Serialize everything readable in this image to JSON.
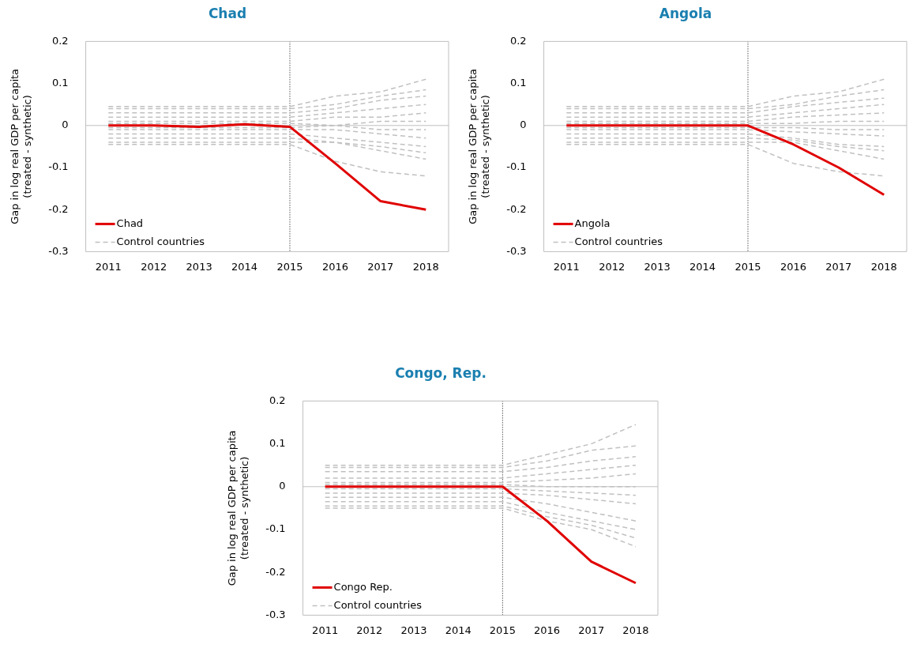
{
  "chart_data": [
    {
      "type": "line",
      "title": "Chad",
      "ylabel": "Gap in log real GDP per capita\n(treated - synthetic)",
      "categories": [
        "2011",
        "2012",
        "2013",
        "2014",
        "2015",
        "2016",
        "2017",
        "2018"
      ],
      "ylim": [
        -0.3,
        0.2
      ],
      "yticks": [
        0.2,
        0.1,
        0,
        -0.1,
        -0.2,
        -0.3
      ],
      "grid": false,
      "legend": "bottom left",
      "marker": "none",
      "ref_lines": [
        {
          "axis": "x",
          "value": "2015",
          "color": "#000000",
          "line_style": "dotted"
        },
        {
          "axis": "y",
          "value": 0,
          "color": "#bfbfbf",
          "line_style": "solid"
        }
      ],
      "series": [
        {
          "name": "Chad",
          "color": "#e00000",
          "line_style": "solid",
          "values": [
            0,
            0,
            -0.003,
            0.003,
            -0.003,
            -0.09,
            -0.18,
            -0.2
          ]
        },
        {
          "name": "Control countries",
          "color": "#c0c0c0",
          "line_style": "dashed",
          "values": [
            0.045,
            0.045,
            0.045,
            0.045,
            0.045,
            0.07,
            0.08,
            0.11
          ]
        },
        {
          "color": "#c0c0c0",
          "line_style": "dashed",
          "values": [
            0.04,
            0.04,
            0.04,
            0.04,
            0.04,
            0.05,
            0.07,
            0.085
          ]
        },
        {
          "color": "#c0c0c0",
          "line_style": "dashed",
          "values": [
            0.03,
            0.03,
            0.03,
            0.03,
            0.03,
            0.04,
            0.06,
            0.07
          ]
        },
        {
          "color": "#c0c0c0",
          "line_style": "dashed",
          "values": [
            0.02,
            0.02,
            0.02,
            0.02,
            0.02,
            0.03,
            0.04,
            0.05
          ]
        },
        {
          "color": "#c0c0c0",
          "line_style": "dashed",
          "values": [
            0.01,
            0.01,
            0.01,
            0.01,
            0.01,
            0.02,
            0.02,
            0.03
          ]
        },
        {
          "color": "#c0c0c0",
          "line_style": "dashed",
          "values": [
            0.005,
            0.005,
            0.005,
            0.005,
            0.005,
            0,
            0.01,
            0.01
          ]
        },
        {
          "color": "#c0c0c0",
          "line_style": "dashed",
          "values": [
            -0.005,
            -0.005,
            -0.005,
            -0.005,
            -0.005,
            0,
            -0.01,
            -0.01
          ]
        },
        {
          "color": "#c0c0c0",
          "line_style": "dashed",
          "values": [
            -0.01,
            -0.01,
            -0.01,
            -0.01,
            -0.01,
            -0.01,
            -0.02,
            -0.03
          ]
        },
        {
          "color": "#c0c0c0",
          "line_style": "dashed",
          "values": [
            -0.02,
            -0.02,
            -0.02,
            -0.02,
            -0.02,
            -0.03,
            -0.04,
            -0.05
          ]
        },
        {
          "color": "#c0c0c0",
          "line_style": "dashed",
          "values": [
            -0.03,
            -0.03,
            -0.03,
            -0.03,
            -0.03,
            -0.04,
            -0.05,
            -0.065
          ]
        },
        {
          "color": "#c0c0c0",
          "line_style": "dashed",
          "values": [
            -0.04,
            -0.04,
            -0.04,
            -0.04,
            -0.04,
            -0.04,
            -0.06,
            -0.08
          ]
        },
        {
          "color": "#c0c0c0",
          "line_style": "dashed",
          "values": [
            -0.045,
            -0.045,
            -0.045,
            -0.045,
            -0.045,
            -0.085,
            -0.11,
            -0.12
          ]
        }
      ]
    },
    {
      "type": "line",
      "title": "Angola",
      "ylabel": "Gap in log real GDP per capita\n(treated - synthetic)",
      "categories": [
        "2011",
        "2012",
        "2013",
        "2014",
        "2015",
        "2016",
        "2017",
        "2018"
      ],
      "ylim": [
        -0.3,
        0.2
      ],
      "yticks": [
        0.2,
        0.1,
        0,
        -0.1,
        -0.2,
        -0.3
      ],
      "grid": false,
      "legend": "bottom left",
      "marker": "none",
      "ref_lines": [
        {
          "axis": "x",
          "value": "2015",
          "color": "#000000",
          "line_style": "dotted"
        },
        {
          "axis": "y",
          "value": 0,
          "color": "#bfbfbf",
          "line_style": "solid"
        }
      ],
      "series": [
        {
          "name": "Angola",
          "color": "#e00000",
          "line_style": "solid",
          "values": [
            0,
            0,
            0,
            0,
            0,
            -0.045,
            -0.1,
            -0.165
          ]
        },
        {
          "name": "Control countries",
          "color": "#c0c0c0",
          "line_style": "dashed",
          "values": [
            0.045,
            0.045,
            0.045,
            0.045,
            0.045,
            0.07,
            0.08,
            0.11
          ]
        },
        {
          "color": "#c0c0c0",
          "line_style": "dashed",
          "values": [
            0.04,
            0.04,
            0.04,
            0.04,
            0.04,
            0.05,
            0.07,
            0.085
          ]
        },
        {
          "color": "#c0c0c0",
          "line_style": "dashed",
          "values": [
            0.03,
            0.03,
            0.03,
            0.03,
            0.03,
            0.045,
            0.055,
            0.065
          ]
        },
        {
          "color": "#c0c0c0",
          "line_style": "dashed",
          "values": [
            0.02,
            0.02,
            0.02,
            0.02,
            0.02,
            0.03,
            0.04,
            0.05
          ]
        },
        {
          "color": "#c0c0c0",
          "line_style": "dashed",
          "values": [
            0.01,
            0.01,
            0.01,
            0.01,
            0.01,
            0.02,
            0.025,
            0.03
          ]
        },
        {
          "color": "#c0c0c0",
          "line_style": "dashed",
          "values": [
            0.005,
            0.005,
            0.005,
            0.005,
            0.005,
            0.005,
            0.01,
            0.01
          ]
        },
        {
          "color": "#c0c0c0",
          "line_style": "dashed",
          "values": [
            -0.005,
            -0.005,
            -0.005,
            -0.005,
            -0.005,
            -0.005,
            -0.01,
            -0.01
          ]
        },
        {
          "color": "#c0c0c0",
          "line_style": "dashed",
          "values": [
            -0.01,
            -0.01,
            -0.01,
            -0.01,
            -0.01,
            -0.015,
            -0.02,
            -0.025
          ]
        },
        {
          "color": "#c0c0c0",
          "line_style": "dashed",
          "values": [
            -0.02,
            -0.02,
            -0.02,
            -0.02,
            -0.02,
            -0.03,
            -0.045,
            -0.05
          ]
        },
        {
          "color": "#c0c0c0",
          "line_style": "dashed",
          "values": [
            -0.03,
            -0.03,
            -0.03,
            -0.03,
            -0.03,
            -0.035,
            -0.05,
            -0.06
          ]
        },
        {
          "color": "#c0c0c0",
          "line_style": "dashed",
          "values": [
            -0.04,
            -0.04,
            -0.04,
            -0.04,
            -0.04,
            -0.04,
            -0.06,
            -0.08
          ]
        },
        {
          "color": "#c0c0c0",
          "line_style": "dashed",
          "values": [
            -0.045,
            -0.045,
            -0.045,
            -0.045,
            -0.045,
            -0.09,
            -0.11,
            -0.12
          ]
        }
      ]
    },
    {
      "type": "line",
      "title": "Congo, Rep.",
      "ylabel": "Gap in log real GDP per capita\n(treated - synthetic)",
      "categories": [
        "2011",
        "2012",
        "2013",
        "2014",
        "2015",
        "2016",
        "2017",
        "2018"
      ],
      "ylim": [
        -0.3,
        0.2
      ],
      "yticks": [
        0.2,
        0.1,
        0,
        -0.1,
        -0.2,
        -0.3
      ],
      "grid": false,
      "legend": "bottom left",
      "marker": "none",
      "ref_lines": [
        {
          "axis": "x",
          "value": "2015",
          "color": "#000000",
          "line_style": "dotted"
        },
        {
          "axis": "y",
          "value": 0,
          "color": "#bfbfbf",
          "line_style": "solid"
        }
      ],
      "series": [
        {
          "name": "Congo Rep.",
          "color": "#e00000",
          "line_style": "solid",
          "values": [
            0,
            0,
            0,
            0,
            0,
            -0.08,
            -0.175,
            -0.225
          ]
        },
        {
          "name": "Control countries",
          "color": "#c0c0c0",
          "line_style": "dashed",
          "values": [
            0.05,
            0.05,
            0.05,
            0.05,
            0.05,
            0.075,
            0.1,
            0.145
          ]
        },
        {
          "color": "#c0c0c0",
          "line_style": "dashed",
          "values": [
            0.045,
            0.045,
            0.045,
            0.045,
            0.045,
            0.06,
            0.085,
            0.095
          ]
        },
        {
          "color": "#c0c0c0",
          "line_style": "dashed",
          "values": [
            0.035,
            0.035,
            0.035,
            0.035,
            0.035,
            0.045,
            0.06,
            0.07
          ]
        },
        {
          "color": "#c0c0c0",
          "line_style": "dashed",
          "values": [
            0.02,
            0.02,
            0.02,
            0.02,
            0.02,
            0.03,
            0.04,
            0.05
          ]
        },
        {
          "color": "#c0c0c0",
          "line_style": "dashed",
          "values": [
            0.01,
            0.01,
            0.01,
            0.01,
            0.01,
            0.015,
            0.02,
            0.03
          ]
        },
        {
          "color": "#c0c0c0",
          "line_style": "dashed",
          "values": [
            0.005,
            0.005,
            0.005,
            0.005,
            0.005,
            0,
            0,
            0
          ]
        },
        {
          "color": "#c0c0c0",
          "line_style": "dashed",
          "values": [
            -0.005,
            -0.005,
            -0.005,
            -0.005,
            -0.005,
            -0.01,
            -0.015,
            -0.02
          ]
        },
        {
          "color": "#c0c0c0",
          "line_style": "dashed",
          "values": [
            -0.015,
            -0.015,
            -0.015,
            -0.015,
            -0.015,
            -0.02,
            -0.03,
            -0.04
          ]
        },
        {
          "color": "#c0c0c0",
          "line_style": "dashed",
          "values": [
            -0.025,
            -0.025,
            -0.025,
            -0.025,
            -0.025,
            -0.04,
            -0.06,
            -0.08
          ]
        },
        {
          "color": "#c0c0c0",
          "line_style": "dashed",
          "values": [
            -0.035,
            -0.035,
            -0.035,
            -0.035,
            -0.035,
            -0.06,
            -0.08,
            -0.1
          ]
        },
        {
          "color": "#c0c0c0",
          "line_style": "dashed",
          "values": [
            -0.045,
            -0.045,
            -0.045,
            -0.045,
            -0.045,
            -0.07,
            -0.09,
            -0.12
          ]
        },
        {
          "color": "#c0c0c0",
          "line_style": "dashed",
          "values": [
            -0.05,
            -0.05,
            -0.05,
            -0.05,
            -0.05,
            -0.08,
            -0.1,
            -0.14
          ]
        }
      ]
    }
  ]
}
